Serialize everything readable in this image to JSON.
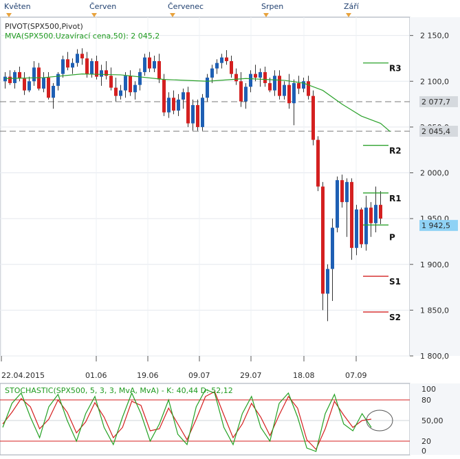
{
  "months": [
    "Květen",
    "Červen",
    "Červenec",
    "Srpen",
    "Září"
  ],
  "legend": {
    "line1": "PIVOT(SPX500,Pivot)",
    "line2": "MVA(SPX500.Uzavírací cena,50): 2 045,2"
  },
  "stoch_legend": "STOCHASTIC(SPX500, 5, 3, 3, MvA, MvA) - K: 40,44 D: 52,12",
  "colors": {
    "up": "#1e5fb4",
    "down": "#d42020",
    "mva": "#2aa12a",
    "pivot_lines": "#2aa12a",
    "sr_lines": "#d42020",
    "k_line": "#22a022",
    "d_line": "#d41e1e",
    "current_badge": "#8fd2f5"
  },
  "price_axis": {
    "ticks": [
      "2 150,0",
      "2 100,0",
      "2 050,0",
      "2 000,0",
      "1 950,0",
      "1 900,0",
      "1 850,0",
      "1 800,0"
    ],
    "markers": [
      {
        "label": "2 077,7",
        "value": 2077.7
      },
      {
        "label": "2 045,4",
        "value": 2045.4
      },
      {
        "label": "1 942,5",
        "value": 1942.5
      }
    ]
  },
  "date_axis": [
    "22.04.2015",
    "01.06",
    "19.06",
    "09.07",
    "29.07",
    "18.08",
    "07.09"
  ],
  "stoch_axis": [
    "100",
    "80",
    "50,00",
    "20",
    "0"
  ],
  "chart_data": {
    "type": "candlestick",
    "title": "",
    "series": [
      {
        "name": "SPX500"
      },
      {
        "name": "MVA(SPX500.Uzavírací cena,50)",
        "last": 2045.2
      },
      {
        "name": "PIVOT(SPX500,Pivot)"
      }
    ],
    "ylim": [
      1800,
      2170
    ],
    "h_lines": [
      2077.7,
      2045.4
    ],
    "current_price": 1942.5,
    "pivots": [
      {
        "name": "R3",
        "value": 2120
      },
      {
        "name": "R2",
        "value": 2030
      },
      {
        "name": "R1",
        "value": 1978
      },
      {
        "name": "P",
        "value": 1943
      },
      {
        "name": "S1",
        "value": 1887
      },
      {
        "name": "S2",
        "value": 1848
      }
    ],
    "dates": [
      "22.04.2015",
      "01.06",
      "19.06",
      "09.07",
      "29.07",
      "18.08",
      "07.09"
    ],
    "ohlc": [
      [
        2100,
        2110,
        2092,
        2105
      ],
      [
        2105,
        2112,
        2096,
        2098
      ],
      [
        2098,
        2112,
        2092,
        2110
      ],
      [
        2110,
        2116,
        2100,
        2103
      ],
      [
        2103,
        2110,
        2085,
        2090
      ],
      [
        2090,
        2105,
        2088,
        2100
      ],
      [
        2100,
        2122,
        2095,
        2115
      ],
      [
        2115,
        2120,
        2090,
        2092
      ],
      [
        2092,
        2110,
        2088,
        2104
      ],
      [
        2104,
        2110,
        2080,
        2082
      ],
      [
        2082,
        2098,
        2070,
        2095
      ],
      [
        2095,
        2110,
        2090,
        2108
      ],
      [
        2108,
        2128,
        2104,
        2124
      ],
      [
        2124,
        2132,
        2112,
        2115
      ],
      [
        2115,
        2125,
        2108,
        2120
      ],
      [
        2120,
        2135,
        2116,
        2130
      ],
      [
        2130,
        2136,
        2118,
        2125
      ],
      [
        2125,
        2132,
        2104,
        2108
      ],
      [
        2108,
        2125,
        2104,
        2122
      ],
      [
        2122,
        2128,
        2102,
        2105
      ],
      [
        2105,
        2118,
        2095,
        2112
      ],
      [
        2112,
        2122,
        2102,
        2106
      ],
      [
        2106,
        2115,
        2090,
        2093
      ],
      [
        2093,
        2104,
        2078,
        2084
      ],
      [
        2084,
        2096,
        2080,
        2090
      ],
      [
        2090,
        2110,
        2082,
        2106
      ],
      [
        2106,
        2112,
        2084,
        2088
      ],
      [
        2088,
        2100,
        2080,
        2096
      ],
      [
        2096,
        2114,
        2090,
        2110
      ],
      [
        2110,
        2130,
        2106,
        2126
      ],
      [
        2126,
        2132,
        2110,
        2114
      ],
      [
        2114,
        2128,
        2110,
        2122
      ],
      [
        2122,
        2130,
        2098,
        2102
      ],
      [
        2102,
        2108,
        2062,
        2066
      ],
      [
        2066,
        2088,
        2060,
        2082
      ],
      [
        2082,
        2090,
        2064,
        2068
      ],
      [
        2068,
        2086,
        2062,
        2080
      ],
      [
        2080,
        2092,
        2070,
        2088
      ],
      [
        2088,
        2094,
        2050,
        2054
      ],
      [
        2054,
        2080,
        2046,
        2074
      ],
      [
        2074,
        2080,
        2046,
        2050
      ],
      [
        2050,
        2086,
        2046,
        2082
      ],
      [
        2082,
        2108,
        2078,
        2104
      ],
      [
        2104,
        2118,
        2098,
        2114
      ],
      [
        2114,
        2124,
        2108,
        2120
      ],
      [
        2120,
        2130,
        2114,
        2126
      ],
      [
        2126,
        2134,
        2118,
        2122
      ],
      [
        2122,
        2128,
        2104,
        2108
      ],
      [
        2108,
        2114,
        2096,
        2100
      ],
      [
        2100,
        2110,
        2072,
        2078
      ],
      [
        2078,
        2098,
        2070,
        2094
      ],
      [
        2094,
        2112,
        2088,
        2108
      ],
      [
        2108,
        2118,
        2100,
        2104
      ],
      [
        2104,
        2114,
        2094,
        2110
      ],
      [
        2110,
        2116,
        2094,
        2098
      ],
      [
        2098,
        2104,
        2088,
        2090
      ],
      [
        2090,
        2112,
        2084,
        2106
      ],
      [
        2106,
        2112,
        2080,
        2084
      ],
      [
        2084,
        2100,
        2080,
        2096
      ],
      [
        2096,
        2108,
        2070,
        2076
      ],
      [
        2076,
        2102,
        2052,
        2098
      ],
      [
        2098,
        2106,
        2086,
        2092
      ],
      [
        2092,
        2104,
        2088,
        2100
      ],
      [
        2100,
        2106,
        2080,
        2084
      ],
      [
        2084,
        2090,
        2030,
        2036
      ],
      [
        2036,
        2040,
        1980,
        1985
      ],
      [
        1985,
        1990,
        1850,
        1868
      ],
      [
        1868,
        1900,
        1838,
        1895
      ],
      [
        1895,
        1950,
        1860,
        1940
      ],
      [
        1940,
        1996,
        1935,
        1992
      ],
      [
        1992,
        1998,
        1962,
        1968
      ],
      [
        1968,
        1994,
        1930,
        1990
      ],
      [
        1990,
        1994,
        1905,
        1918
      ],
      [
        1918,
        1965,
        1910,
        1960
      ],
      [
        1960,
        1962,
        1918,
        1922
      ],
      [
        1922,
        1975,
        1915,
        1962
      ],
      [
        1962,
        1968,
        1930,
        1945
      ],
      [
        1945,
        1985,
        1935,
        1965
      ],
      [
        1965,
        1980,
        1944,
        1950
      ]
    ],
    "mva": [
      [
        0,
        2103
      ],
      [
        8,
        2104
      ],
      [
        16,
        2108
      ],
      [
        24,
        2107
      ],
      [
        33,
        2102
      ],
      [
        42,
        2100
      ],
      [
        50,
        2103
      ],
      [
        58,
        2101
      ],
      [
        62,
        2098
      ],
      [
        66,
        2090
      ],
      [
        70,
        2075
      ],
      [
        74,
        2062
      ],
      [
        78,
        2054
      ],
      [
        80,
        2045
      ]
    ],
    "stochastic": {
      "levels": [
        80,
        50,
        20
      ],
      "k": [
        [
          0,
          40
        ],
        [
          2,
          75
        ],
        [
          4,
          90
        ],
        [
          6,
          55
        ],
        [
          8,
          25
        ],
        [
          10,
          70
        ],
        [
          12,
          88
        ],
        [
          14,
          50
        ],
        [
          16,
          20
        ],
        [
          18,
          60
        ],
        [
          20,
          85
        ],
        [
          22,
          40
        ],
        [
          24,
          15
        ],
        [
          26,
          55
        ],
        [
          28,
          90
        ],
        [
          30,
          60
        ],
        [
          32,
          20
        ],
        [
          34,
          45
        ],
        [
          36,
          80
        ],
        [
          38,
          30
        ],
        [
          40,
          15
        ],
        [
          42,
          70
        ],
        [
          44,
          95
        ],
        [
          46,
          90
        ],
        [
          48,
          40
        ],
        [
          50,
          15
        ],
        [
          52,
          60
        ],
        [
          54,
          85
        ],
        [
          56,
          40
        ],
        [
          58,
          20
        ],
        [
          60,
          75
        ],
        [
          62,
          90
        ],
        [
          64,
          55
        ],
        [
          66,
          10
        ],
        [
          68,
          5
        ],
        [
          70,
          60
        ],
        [
          72,
          88
        ],
        [
          74,
          45
        ],
        [
          76,
          35
        ],
        [
          78,
          60
        ],
        [
          80,
          40
        ]
      ],
      "d": [
        [
          0,
          45
        ],
        [
          2,
          62
        ],
        [
          4,
          82
        ],
        [
          6,
          70
        ],
        [
          8,
          38
        ],
        [
          10,
          52
        ],
        [
          12,
          80
        ],
        [
          14,
          62
        ],
        [
          16,
          32
        ],
        [
          18,
          48
        ],
        [
          20,
          76
        ],
        [
          22,
          55
        ],
        [
          24,
          25
        ],
        [
          26,
          40
        ],
        [
          28,
          78
        ],
        [
          30,
          72
        ],
        [
          32,
          35
        ],
        [
          34,
          38
        ],
        [
          36,
          68
        ],
        [
          38,
          45
        ],
        [
          40,
          22
        ],
        [
          42,
          52
        ],
        [
          44,
          85
        ],
        [
          46,
          92
        ],
        [
          48,
          58
        ],
        [
          50,
          25
        ],
        [
          52,
          45
        ],
        [
          54,
          75
        ],
        [
          56,
          55
        ],
        [
          58,
          28
        ],
        [
          60,
          58
        ],
        [
          62,
          85
        ],
        [
          64,
          68
        ],
        [
          66,
          22
        ],
        [
          68,
          8
        ],
        [
          70,
          38
        ],
        [
          72,
          78
        ],
        [
          74,
          58
        ],
        [
          76,
          40
        ],
        [
          78,
          50
        ],
        [
          80,
          52
        ]
      ]
    }
  }
}
